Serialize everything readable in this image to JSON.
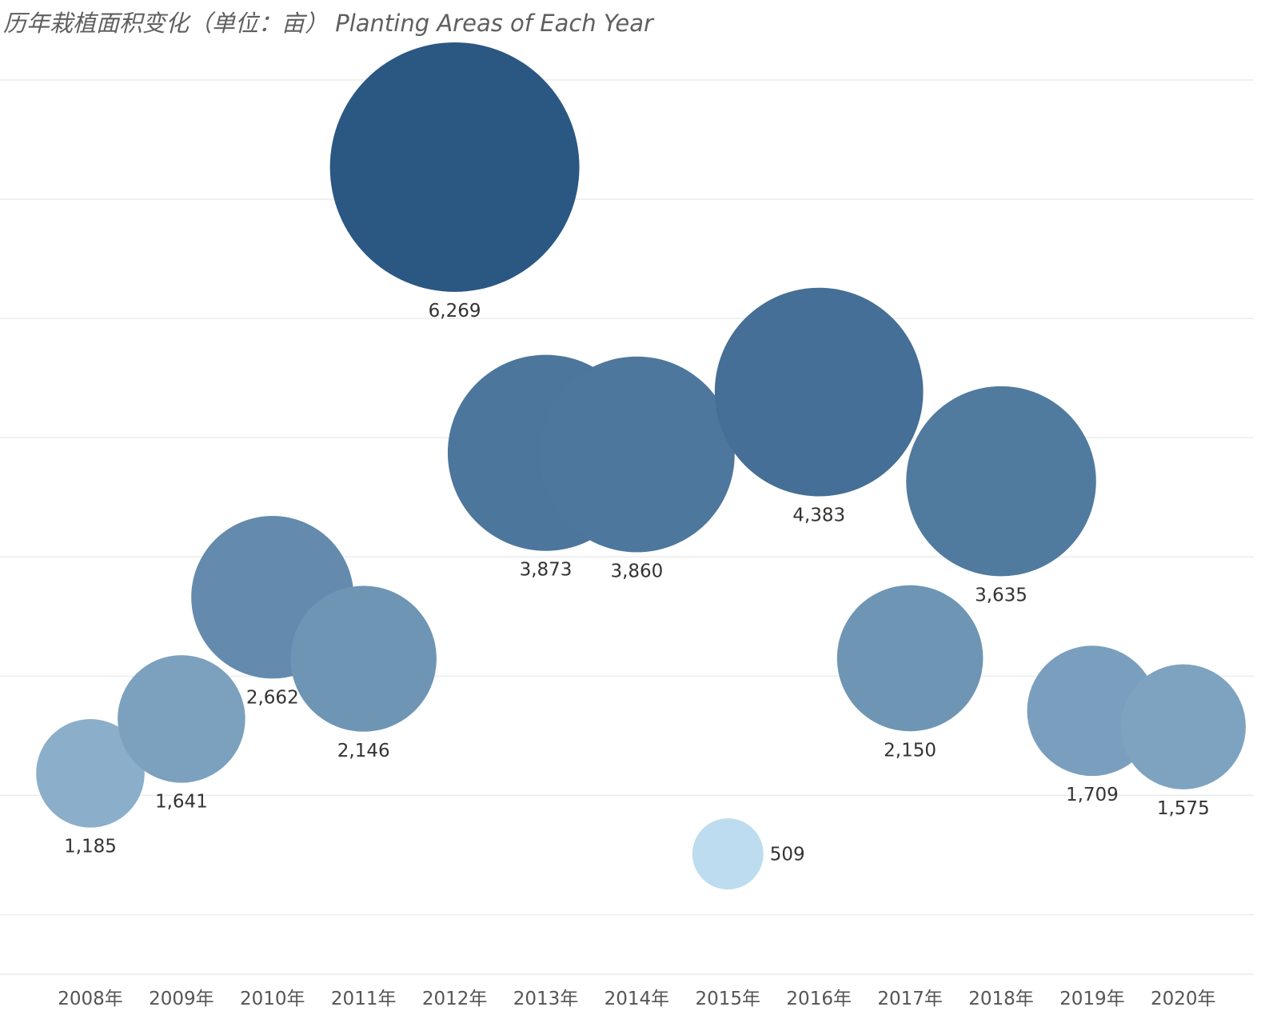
{
  "title": "历年栽植面积变化（单位：亩）  Planting Areas of Each Year",
  "colors": {
    "light": "#bddcef",
    "dark": "#2b5783",
    "grid": "#ececec",
    "label": "#333333"
  },
  "chart_data": {
    "type": "scatter",
    "title": "历年栽植面积变化（单位：亩）  Planting Areas of Each Year",
    "xlabel": "",
    "ylabel": "",
    "ylim": [
      -500,
      7000
    ],
    "grid": true,
    "y_axis_labels_visible": false,
    "size_encodes": "value",
    "color_encodes": "value",
    "points": [
      {
        "x": "2008年",
        "y": 1185,
        "label": "1,185"
      },
      {
        "x": "2009年",
        "y": 1641,
        "label": "1,641"
      },
      {
        "x": "2010年",
        "y": 2662,
        "label": "2,662"
      },
      {
        "x": "2011年",
        "y": 2146,
        "label": "2,146"
      },
      {
        "x": "2012年",
        "y": 6269,
        "label": "6,269"
      },
      {
        "x": "2013年",
        "y": 3873,
        "label": "3,873"
      },
      {
        "x": "2014年",
        "y": 3860,
        "label": "3,860"
      },
      {
        "x": "2015年",
        "y": 509,
        "label": "509",
        "label_position": "right"
      },
      {
        "x": "2016年",
        "y": 4383,
        "label": "4,383"
      },
      {
        "x": "2017年",
        "y": 2150,
        "label": "2,150"
      },
      {
        "x": "2018年",
        "y": 3635,
        "label": "3,635"
      },
      {
        "x": "2019年",
        "y": 1709,
        "label": "1,709"
      },
      {
        "x": "2020年",
        "y": 1575,
        "label": "1,575"
      }
    ]
  }
}
